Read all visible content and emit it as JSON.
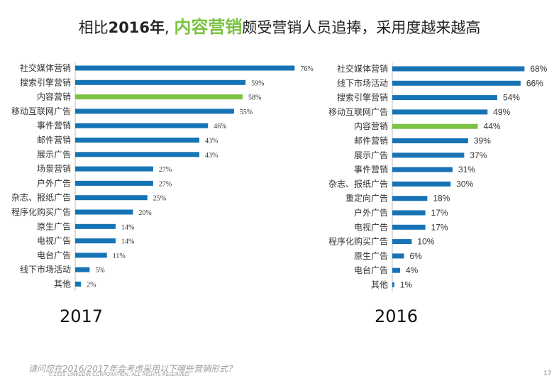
{
  "title": {
    "prefix": "相比",
    "year": "2016年",
    "comma": ",",
    "highlight": "内容营销",
    "suffix": "颇受营销人员追捧，采用度越来越高"
  },
  "colors": {
    "bar": "#1673b5",
    "highlight_bar": "#7cc243"
  },
  "chart_data": [
    {
      "type": "bar",
      "orientation": "horizontal",
      "year_label": "2017",
      "highlight": "内容营销",
      "categories": [
        "社交媒体营销",
        "搜索引擎营销",
        "内容营销",
        "移动互联网广告",
        "事件营销",
        "邮件营销",
        "展示广告",
        "场景营销",
        "户外广告",
        "杂志、报纸广告",
        "程序化购买广告",
        "原生广告",
        "电视广告",
        "电台广告",
        "线下市场活动",
        "其他"
      ],
      "values": [
        76,
        59,
        58,
        55,
        46,
        43,
        43,
        27,
        27,
        25,
        20,
        14,
        14,
        11,
        5,
        2
      ],
      "labels": [
        "76%",
        "59%",
        "58%",
        "55%",
        "46%",
        "43%",
        "43%",
        "27%",
        "27%",
        "25%",
        "20%",
        "14%",
        "14%",
        "11%",
        "5%",
        "2%"
      ]
    },
    {
      "type": "bar",
      "orientation": "horizontal",
      "year_label": "2016",
      "highlight": "内容营销",
      "categories": [
        "社交媒体营销",
        "线下市场活动",
        "搜索引擎营销",
        "移动互联网广告",
        "内容营销",
        "邮件营销",
        "展示广告",
        "事件营销",
        "杂志、报纸广告",
        "重定向广告",
        "户外广告",
        "电视广告",
        "程序化购买广告",
        "原生广告",
        "电台广告",
        "其他"
      ],
      "values": [
        68,
        66,
        54,
        49,
        44,
        39,
        37,
        31,
        30,
        18,
        17,
        17,
        10,
        6,
        4,
        1
      ],
      "labels": [
        "68%",
        "66%",
        "54%",
        "49%",
        "44%",
        "39%",
        "37%",
        "31%",
        "30%",
        "18%",
        "17%",
        "17%",
        "10%",
        "6%",
        "4%",
        "1%"
      ]
    }
  ],
  "footer": {
    "question": "请问您在2016/2017年会考虑采用以下哪些营销形式？",
    "copyright": "©2015 LINKEDIN CORPORATION. ALL RIGHTS RESERVED.",
    "page": "17"
  }
}
